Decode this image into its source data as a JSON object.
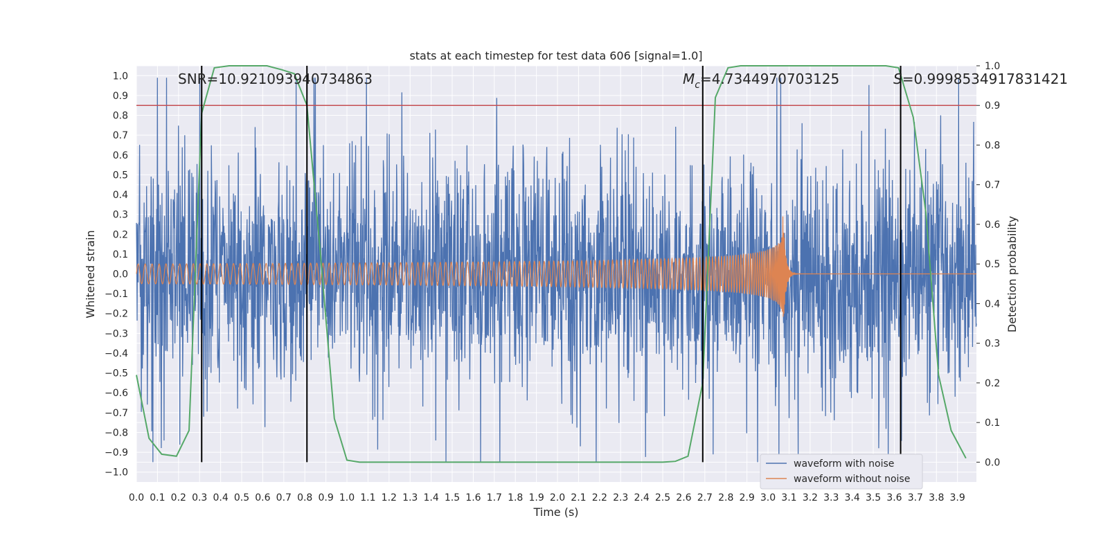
{
  "chart_data": {
    "type": "line",
    "title": "stats at each timestep for test data 606 [signal=1.0]",
    "xlabel": "Time (s)",
    "ylabel": "Whitened strain",
    "y2label": "Detection probability",
    "xlim": [
      0.0,
      3.99
    ],
    "ylim": [
      -1.05,
      1.05
    ],
    "y2lim": [
      -0.05,
      1.0
    ],
    "x_ticks": [
      0.0,
      0.1,
      0.2,
      0.3,
      0.4,
      0.5,
      0.6,
      0.7,
      0.8,
      0.9,
      1.0,
      1.1,
      1.2,
      1.3,
      1.4,
      1.5,
      1.6,
      1.7,
      1.8,
      1.9,
      2.0,
      2.1,
      2.2,
      2.3,
      2.4,
      2.5,
      2.6,
      2.7,
      2.8,
      2.9,
      3.0,
      3.1,
      3.2,
      3.3,
      3.4,
      3.5,
      3.6,
      3.7,
      3.8,
      3.9
    ],
    "y_ticks": [
      1.0,
      0.9,
      0.8,
      0.7,
      0.6,
      0.5,
      0.4,
      0.3,
      0.2,
      0.1,
      0.0,
      -0.1,
      -0.2,
      -0.3,
      -0.4,
      -0.5,
      -0.6,
      -0.7,
      -0.8,
      -0.9,
      -1.0
    ],
    "y2_ticks": [
      1.0,
      0.9,
      0.8,
      0.7,
      0.6,
      0.5,
      0.4,
      0.3,
      0.2,
      0.1,
      0.0
    ],
    "x_tick_labels": [
      "0.0",
      "0.1",
      "0.2",
      "0.3",
      "0.4",
      "0.5",
      "0.6",
      "0.7",
      "0.8",
      "0.9",
      "1.0",
      "1.1",
      "1.2",
      "1.3",
      "1.4",
      "1.5",
      "1.6",
      "1.7",
      "1.8",
      "1.9",
      "2.0",
      "2.1",
      "2.2",
      "2.3",
      "2.4",
      "2.5",
      "2.6",
      "2.7",
      "2.8",
      "2.9",
      "3.0",
      "3.1",
      "3.2",
      "3.3",
      "3.4",
      "3.5",
      "3.6",
      "3.7",
      "3.8",
      "3.9"
    ],
    "y_tick_labels": [
      "1.0",
      "0.9",
      "0.8",
      "0.7",
      "0.6",
      "0.5",
      "0.4",
      "0.3",
      "0.2",
      "0.1",
      "0.0",
      "−0.1",
      "−0.2",
      "−0.3",
      "−0.4",
      "−0.5",
      "−0.6",
      "−0.7",
      "−0.8",
      "−0.9",
      "−1.0"
    ],
    "y2_tick_labels": [
      "1.0",
      "0.9",
      "0.8",
      "0.7",
      "0.6",
      "0.5",
      "0.4",
      "0.3",
      "0.2",
      "0.1",
      "0.0"
    ],
    "grid": true,
    "legend_position": "lower-right",
    "series": [
      {
        "name": "waveform with noise",
        "color": "#4c72b0",
        "axis": "left",
        "description_amplitude": "noise, peaks up to about ±1.0"
      },
      {
        "name": "waveform without noise",
        "color": "#dd8452",
        "axis": "left",
        "chirp": {
          "start_amplitude": 0.05,
          "peak_amplitude": 0.34,
          "merger_time": 3.07,
          "start_frequency_hz": 30
        }
      },
      {
        "name": "detection probability",
        "color": "#55a868",
        "axis": "right",
        "x": [
          0.0,
          0.06,
          0.12,
          0.19,
          0.25,
          0.31,
          0.37,
          0.44,
          0.5,
          0.56,
          0.62,
          0.69,
          0.75,
          0.81,
          0.87,
          0.94,
          1.0,
          1.06,
          1.12,
          1.19,
          1.25,
          1.31,
          1.37,
          1.44,
          1.5,
          1.56,
          1.62,
          1.69,
          1.75,
          1.81,
          1.87,
          1.94,
          2.0,
          2.06,
          2.12,
          2.19,
          2.25,
          2.31,
          2.37,
          2.44,
          2.5,
          2.56,
          2.62,
          2.69,
          2.75,
          2.81,
          2.87,
          2.94,
          3.0,
          3.06,
          3.12,
          3.19,
          3.25,
          3.31,
          3.37,
          3.44,
          3.5,
          3.56,
          3.62,
          3.69,
          3.75,
          3.81,
          3.87,
          3.94
        ],
        "y": [
          0.22,
          0.06,
          0.02,
          0.015,
          0.08,
          0.88,
          0.995,
          1.0,
          1.0,
          1.0,
          1.0,
          0.99,
          0.98,
          0.9,
          0.55,
          0.11,
          0.005,
          0.0,
          0.0,
          0.0,
          0.0,
          0.0,
          0.0,
          0.0,
          0.0,
          0.0,
          0.0,
          0.0,
          0.0,
          0.0,
          0.0,
          0.0,
          0.0,
          0.0,
          0.0,
          0.0,
          0.0,
          0.0,
          0.0,
          0.0,
          0.0,
          0.002,
          0.015,
          0.2,
          0.92,
          0.995,
          1.0,
          1.0,
          1.0,
          1.0,
          1.0,
          1.0,
          1.0,
          1.0,
          1.0,
          1.0,
          1.0,
          1.0,
          0.995,
          0.87,
          0.63,
          0.22,
          0.08,
          0.01
        ]
      }
    ],
    "threshold": {
      "value_y2": 0.9,
      "color": "#c44e52"
    },
    "vertical_lines": [
      0.31,
      0.81,
      2.69,
      3.63
    ],
    "annotations": [
      {
        "text": "SNR=10.921093940734863",
        "x": 0.2,
        "y": 1.0
      },
      {
        "text": "=4.7344970703125",
        "symbol": "M",
        "subscript": "c",
        "x": 2.6,
        "y": 1.0
      },
      {
        "text": "=0.9998534917831421",
        "symbol": "S",
        "x": 3.6,
        "y": 1.0
      }
    ]
  }
}
